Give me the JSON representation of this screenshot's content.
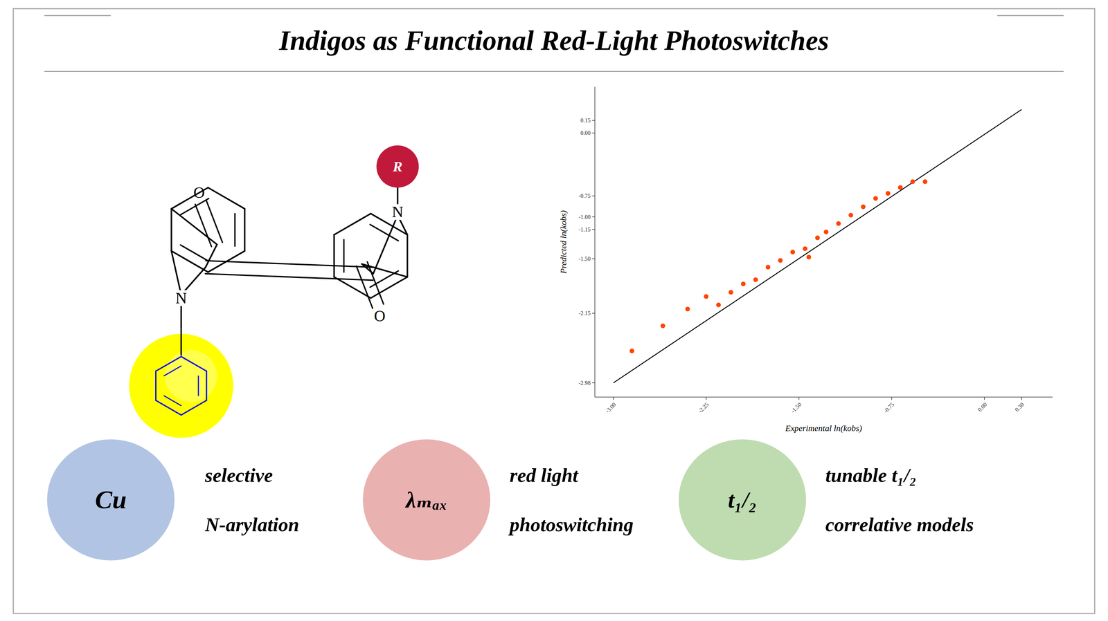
{
  "chart_data": {
    "type": "scatter",
    "title": "Indigos as Functional Red-Light Photoswitches",
    "x_label": "Experimental ln(kobs)",
    "y_label": "Predicted ln(kobs)",
    "series": [
      {
        "type": "scatter",
        "color": "#ff4400",
        "x": [
          -2.85,
          -2.6,
          -2.4,
          -2.25,
          -2.15,
          -2.05,
          -1.95,
          -1.85,
          -1.75,
          -1.65,
          -1.55,
          -1.45,
          -1.42,
          -1.35,
          -1.28,
          -1.18,
          -1.08,
          -0.98,
          -0.88,
          -0.78,
          -0.68,
          -0.58,
          -0.48
        ],
        "values": [
          -2.6,
          -2.3,
          -2.1,
          -1.95,
          -2.05,
          -1.9,
          -1.8,
          -1.75,
          -1.6,
          -1.52,
          -1.42,
          -1.38,
          -1.48,
          -1.25,
          -1.18,
          -1.08,
          -0.98,
          -0.88,
          -0.78,
          -0.72,
          -0.65,
          -0.58,
          -0.58
        ]
      },
      {
        "type": "line",
        "color": "#000000",
        "x": [
          -3.0,
          0.3
        ],
        "values": [
          -2.98,
          0.28
        ]
      }
    ],
    "xlim": [
      -3.15,
      0.55
    ],
    "ylim": [
      -3.15,
      0.55
    ],
    "xticks": [
      {
        "value": -3.0,
        "label": "-3.00"
      },
      -2.25,
      {
        "value": -1.5,
        "label": "-1.50"
      },
      -0.75,
      {
        "value": 0.0,
        "label": "0.00"
      },
      {
        "value": 0.3,
        "label": "0.30"
      }
    ],
    "yticks": [
      -2.98,
      -2.15,
      {
        "value": -1.5,
        "label": "-1.50"
      },
      -1.15,
      {
        "value": -1.0,
        "label": "-1.00"
      },
      -0.75,
      {
        "value": 0.0,
        "label": "0.00"
      },
      0.15
    ],
    "grid": false,
    "annotations": [
      "O",
      "O",
      "N",
      "N",
      "R",
      "Cu",
      "λₘₐₓ",
      "t₁/₂",
      "selective",
      "N-arylation",
      "red light",
      "photoswitching",
      "tunable t₁/₂",
      "correlative models"
    ]
  }
}
